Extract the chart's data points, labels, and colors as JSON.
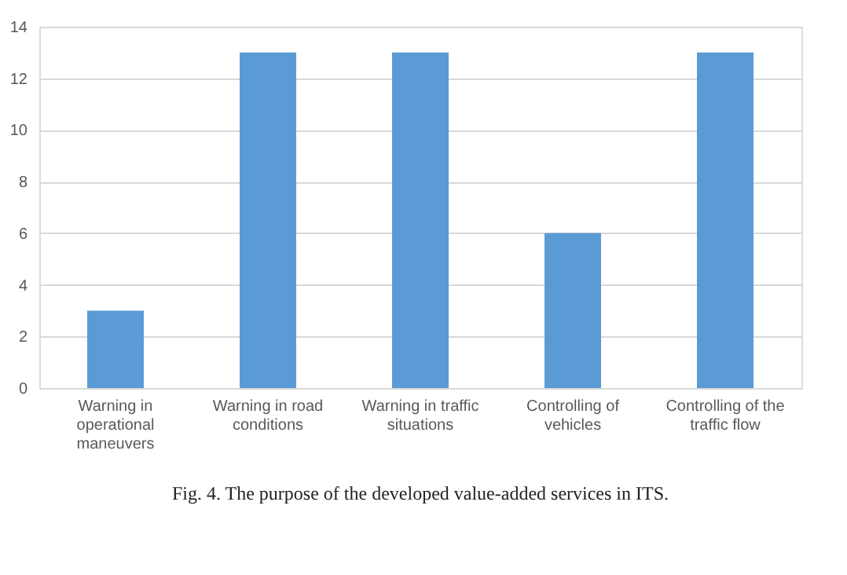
{
  "chart_data": {
    "type": "bar",
    "categories": [
      "Warning in operational maneuvers",
      "Warning in road conditions",
      "Warning in traffic situations",
      "Controlling of vehicles",
      "Controlling of the traffic flow"
    ],
    "values": [
      3,
      13,
      13,
      6,
      13
    ],
    "color": "#5b9bd5",
    "ylim": [
      0,
      14
    ],
    "yticks": [
      0,
      2,
      4,
      6,
      8,
      10,
      12,
      14
    ],
    "grid": "y",
    "annotations": [
      "Fig. 4.  The purpose of the developed value-added services in ITS."
    ]
  }
}
